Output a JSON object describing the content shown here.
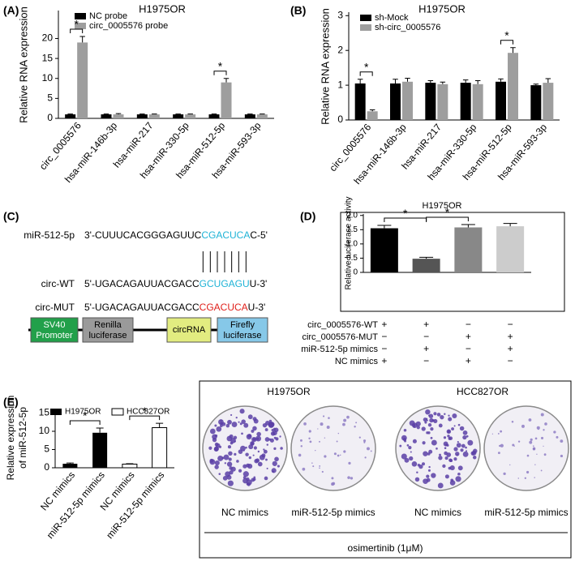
{
  "panel_labels": [
    "(A)",
    "(B)",
    "(C)",
    "(D)",
    "(E)"
  ],
  "chart_data": [
    {
      "type": "bar",
      "title": "H1975OR",
      "ylabel": "Relative RNA expression",
      "categories": [
        "circ_0005576",
        "hsa-miR-146b-3p",
        "hsa-miR-217",
        "hsa-miR-330-5p",
        "hsa-miR-512-5p",
        "hsa-miR-593-3p"
      ],
      "series": [
        {
          "name": "NC probe",
          "color": "#000000",
          "values": [
            1,
            1,
            1,
            1,
            1,
            1
          ],
          "errors": [
            0.1,
            0.1,
            0.1,
            0.1,
            0.1,
            0.1
          ]
        },
        {
          "name": "circ_0005576 probe",
          "color": "#9e9e9e",
          "values": [
            19,
            1,
            1,
            1,
            9,
            1
          ],
          "errors": [
            1.5,
            0.2,
            0.1,
            0.1,
            1,
            0.1
          ]
        }
      ],
      "ylim": [
        0,
        27
      ],
      "yticks": [
        0,
        5,
        10,
        15,
        20
      ],
      "annotations": [
        "*",
        "*"
      ]
    },
    {
      "type": "bar",
      "title": "H1975OR",
      "ylabel": "Relative RNA expression",
      "categories": [
        "circ_0005576",
        "hsa-miR-146b-3p",
        "hsa-miR-217",
        "hsa-miR-330-5p",
        "hsa-miR-512-5p",
        "hsa-miR-593-3p"
      ],
      "series": [
        {
          "name": "sh-Mock",
          "color": "#000000",
          "values": [
            1.05,
            1.05,
            1.07,
            1.07,
            1.1,
            1.0
          ],
          "errors": [
            0.12,
            0.12,
            0.06,
            0.08,
            0.08,
            0.03
          ]
        },
        {
          "name": "sh-circ_0005576",
          "color": "#9e9e9e",
          "values": [
            0.25,
            1.1,
            1.03,
            1.03,
            1.93,
            1.07
          ],
          "errors": [
            0.04,
            0.1,
            0.06,
            0.1,
            0.15,
            0.12
          ]
        }
      ],
      "ylim": [
        0,
        3.1
      ],
      "yticks": [
        0,
        1,
        2,
        3
      ],
      "annotations": [
        "*",
        "*"
      ]
    },
    {
      "type": "bar",
      "title": "H1975OR",
      "ylabel": "Relative luciferase activity",
      "values": [
        1.55,
        0.48,
        1.58,
        1.62
      ],
      "errors": [
        0.1,
        0.05,
        0.1,
        0.1
      ],
      "colors": [
        "#000000",
        "#555555",
        "#888888",
        "#cccccc"
      ],
      "ylim": [
        0,
        2.05
      ],
      "yticks": [
        0,
        0.5,
        {
          "value": 1,
          "label": "1.0"
        },
        1.5,
        {
          "value": 2,
          "label": "2.0"
        }
      ],
      "conditions": [
        {
          "name": "circ_0005576-WT",
          "values": [
            "+",
            "+",
            "−",
            "−"
          ]
        },
        {
          "name": "circ_0005576-MUT",
          "values": [
            "−",
            "−",
            "+",
            "+"
          ]
        },
        {
          "name": "miR-512-5p mimics",
          "values": [
            "−",
            "+",
            "−",
            "+"
          ]
        },
        {
          "name": "NC mimics",
          "values": [
            "+",
            "−",
            "+",
            "−"
          ]
        }
      ],
      "annotations": [
        "*",
        "*"
      ]
    },
    {
      "type": "bar",
      "ylabel": [
        "Relative expression",
        "of miR-512-5p"
      ],
      "categories": [
        "NC mimics",
        "miR-512-5p mimics",
        "NC mimics",
        "miR-512-5p mimics"
      ],
      "series": [
        {
          "name": "H1975OR",
          "color": "#000000",
          "values": [
            1.1,
            9.6,
            null,
            null
          ],
          "errors": [
            0.2,
            1.3,
            null,
            null
          ]
        },
        {
          "name": "HCC827OR",
          "color": "#ffffff",
          "values": [
            null,
            null,
            1.0,
            11.0
          ],
          "errors": [
            null,
            null,
            0.1,
            1.2
          ]
        }
      ],
      "ylim": [
        0,
        16
      ],
      "yticks": [
        0,
        5,
        10,
        15
      ],
      "annotations": [
        "*",
        "*"
      ]
    }
  ],
  "diagram": {
    "rows": [
      {
        "label": "miR-512-5p",
        "prefix": "3'-CUUUCACGGGAGUUC",
        "site": "CGACUCA",
        "suffix": "C-5'"
      },
      {
        "label": "circ-WT",
        "prefix": "5'-UGACAGAUUACGACC",
        "site": "GCUGAGU",
        "suffix": "U-3'"
      },
      {
        "label": "circ-MUT",
        "prefix": "5'-UGACAGAUUACGACC",
        "site": "CGACUCA",
        "suffix": "U-3'"
      }
    ],
    "elements": [
      [
        "SV40",
        "Promoter"
      ],
      [
        "Renilla",
        "luciferase"
      ],
      [
        "circRNA"
      ],
      [
        "Firefly",
        "luciferase"
      ]
    ]
  },
  "colony_assay": {
    "groups": [
      "H1975OR",
      "HCC827OR"
    ],
    "labels": [
      "NC mimics",
      "miR-512-5p mimics",
      "NC mimics",
      "miR-512-5p mimics"
    ],
    "treatment": "osimertinib (1μM)"
  }
}
